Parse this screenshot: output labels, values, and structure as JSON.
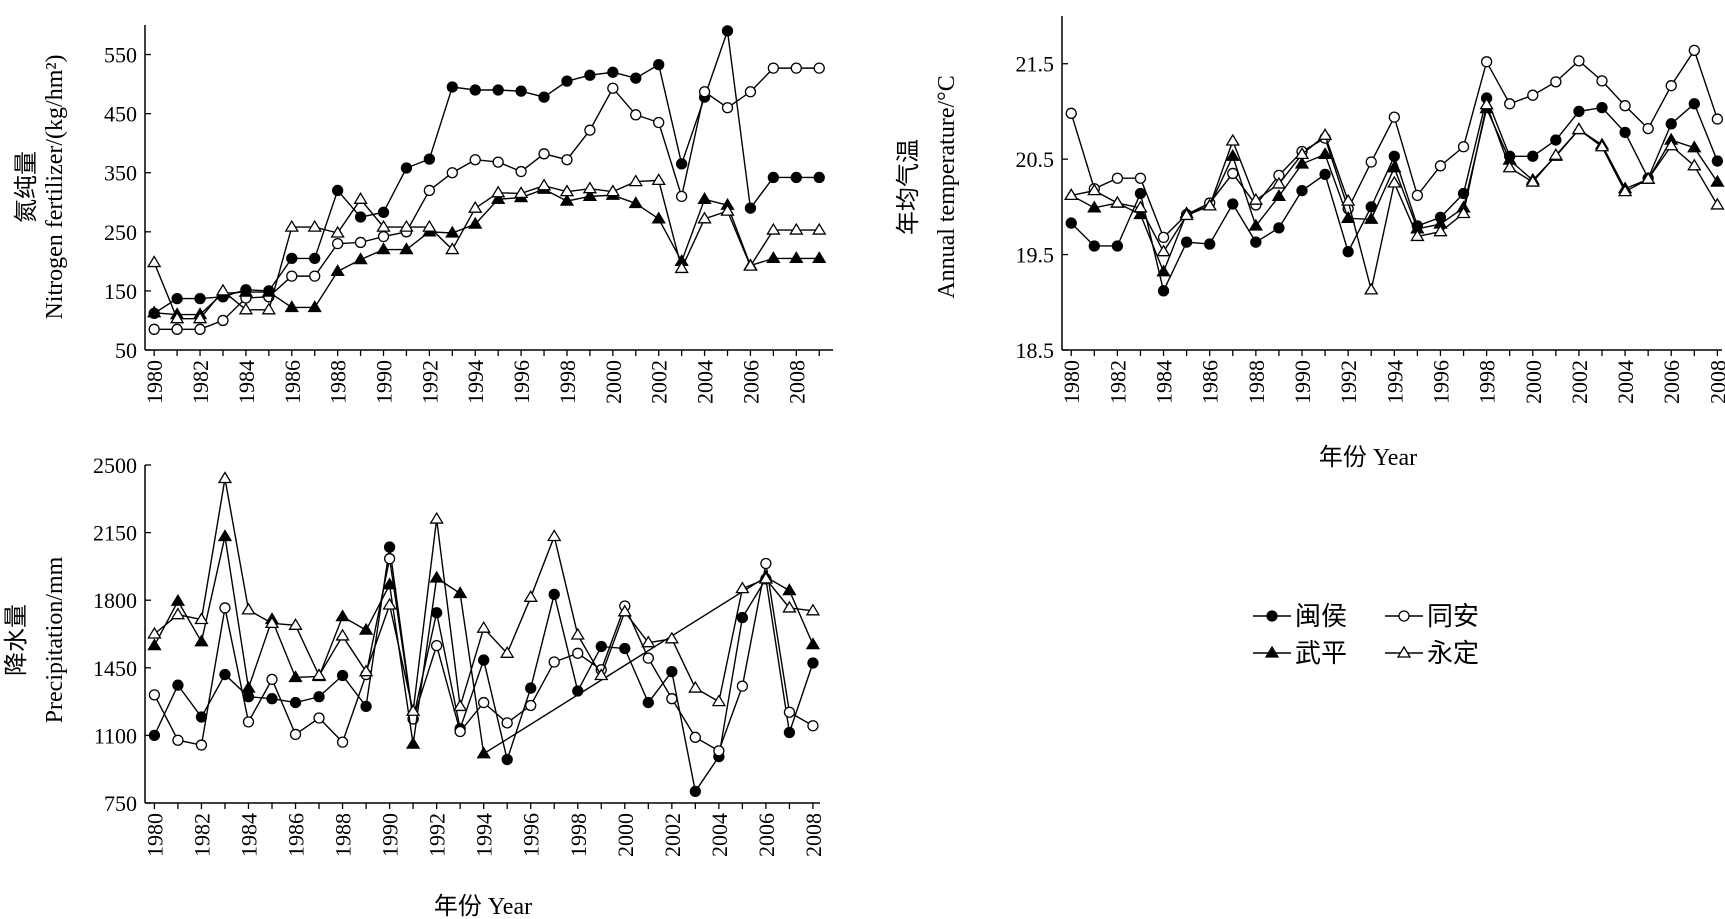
{
  "legend": {
    "entries": [
      {
        "series": "minhou",
        "label": "闽侯"
      },
      {
        "series": "tongan",
        "label": "同安"
      },
      {
        "series": "wuping",
        "label": "武平"
      },
      {
        "series": "yongding",
        "label": "永定"
      }
    ]
  },
  "chart_data": [
    {
      "id": "nitrogen",
      "type": "line",
      "ylabel_cn": "氮纯量",
      "ylabel_en": "Nitrogen fertilizer/(kg/hm²)",
      "xlabel": "",
      "ylim": [
        50,
        600
      ],
      "yticks": [
        50,
        150,
        250,
        350,
        450,
        550
      ],
      "xticks": [
        1980,
        1982,
        1984,
        1986,
        1988,
        1990,
        1992,
        1994,
        1996,
        1998,
        2000,
        2002,
        2004,
        2006,
        2008
      ],
      "xlim": [
        1979.6,
        2009.6
      ],
      "x": [
        1980,
        1981,
        1982,
        1983,
        1984,
        1985,
        1986,
        1987,
        1988,
        1989,
        1990,
        1991,
        1992,
        1993,
        1994,
        1995,
        1996,
        1997,
        1998,
        1999,
        2000,
        2001,
        2002,
        2003,
        2004,
        2005,
        2006,
        2007,
        2008,
        2009
      ],
      "series": [
        {
          "key": "minhou",
          "values": [
            112,
            137,
            137,
            140,
            152,
            150,
            205,
            205,
            320,
            275,
            283,
            358,
            373,
            495,
            490,
            490,
            488,
            478,
            505,
            515,
            520,
            510,
            533,
            365,
            478,
            590,
            290,
            342,
            342,
            342
          ]
        },
        {
          "key": "tongan",
          "values": [
            85,
            85,
            85,
            100,
            138,
            140,
            175,
            175,
            230,
            232,
            242,
            250,
            320,
            350,
            372,
            368,
            352,
            382,
            372,
            422,
            493,
            448,
            435,
            310,
            487,
            460,
            487,
            527,
            527,
            527
          ]
        },
        {
          "key": "wuping",
          "values": [
            113,
            110,
            110,
            146,
            148,
            148,
            122,
            122,
            183,
            203,
            220,
            220,
            250,
            248,
            263,
            305,
            308,
            322,
            302,
            310,
            312,
            298,
            272,
            200,
            305,
            295,
            193,
            205,
            205,
            205
          ]
        },
        {
          "key": "yongding",
          "values": [
            198,
            103,
            103,
            150,
            118,
            118,
            258,
            258,
            248,
            305,
            258,
            258,
            258,
            220,
            290,
            316,
            315,
            328,
            318,
            323,
            318,
            335,
            337,
            188,
            272,
            285,
            192,
            253,
            253,
            253
          ]
        }
      ]
    },
    {
      "id": "temperature",
      "type": "line",
      "ylabel_cn": "年均气温",
      "ylabel_en": "Annual temperature/°C",
      "xlabel": "年份 Year",
      "ylim": [
        18.5,
        22.0
      ],
      "yticks": [
        18.5,
        19.5,
        20.5,
        21.5
      ],
      "yticklabels": [
        "18.5",
        "19.5",
        "20.5",
        "21.5"
      ],
      "xticks": [
        1980,
        1982,
        1984,
        1986,
        1988,
        1990,
        1992,
        1994,
        1996,
        1998,
        2000,
        2002,
        2004,
        2006,
        2008
      ],
      "xlim": [
        1979.6,
        2008.2
      ],
      "x": [
        1980,
        1981,
        1982,
        1983,
        1984,
        1985,
        1986,
        1987,
        1988,
        1989,
        1990,
        1991,
        1992,
        1993,
        1994,
        1995,
        1996,
        1997,
        1998,
        1999,
        2000,
        2001,
        2002,
        2003,
        2004,
        2005,
        2006,
        2007,
        2008
      ],
      "series": [
        {
          "key": "minhou",
          "values": [
            19.83,
            19.59,
            19.59,
            20.14,
            19.12,
            19.63,
            19.61,
            20.03,
            19.63,
            19.78,
            20.17,
            20.34,
            19.53,
            20.0,
            20.53,
            19.8,
            19.89,
            20.14,
            21.14,
            20.53,
            20.53,
            20.7,
            21.0,
            21.04,
            20.78,
            20.3,
            20.87,
            21.08,
            20.48
          ]
        },
        {
          "key": "tongan",
          "values": [
            20.98,
            20.19,
            20.3,
            20.3,
            19.68,
            19.92,
            20.04,
            20.35,
            20.02,
            20.33,
            20.58,
            20.72,
            19.98,
            20.47,
            20.94,
            20.12,
            20.43,
            20.63,
            21.52,
            21.08,
            21.17,
            21.31,
            21.53,
            21.32,
            21.06,
            20.82,
            21.27,
            21.64,
            20.92
          ]
        },
        {
          "key": "wuping",
          "values": [
            20.12,
            19.99,
            20.04,
            19.92,
            19.32,
            19.93,
            20.01,
            20.53,
            19.8,
            20.11,
            20.45,
            20.55,
            19.88,
            19.87,
            20.41,
            19.77,
            19.82,
            19.99,
            21.03,
            20.49,
            20.28,
            20.53,
            20.81,
            20.65,
            20.19,
            20.29,
            20.7,
            20.62,
            20.26
          ]
        },
        {
          "key": "yongding",
          "values": [
            20.12,
            20.17,
            20.04,
            19.99,
            19.53,
            19.91,
            20.01,
            20.69,
            20.07,
            20.24,
            20.55,
            20.75,
            20.06,
            19.13,
            20.25,
            19.69,
            19.74,
            19.93,
            21.07,
            20.41,
            20.26,
            20.54,
            20.81,
            20.63,
            20.16,
            20.29,
            20.64,
            20.43,
            20.02
          ]
        }
      ]
    },
    {
      "id": "precipitation",
      "type": "line",
      "ylabel_cn": "降水量",
      "ylabel_en": "Precipitation/mm",
      "xlabel": "年份 Year",
      "ylim": [
        750,
        2500
      ],
      "yticks": [
        750,
        1100,
        1450,
        1800,
        2150,
        2500
      ],
      "xticks": [
        1980,
        1982,
        1984,
        1986,
        1988,
        1990,
        1992,
        1994,
        1996,
        1998,
        2000,
        2002,
        2004,
        2006,
        2008
      ],
      "xlim": [
        1979.6,
        2008.3
      ],
      "x": [
        1980,
        1981,
        1982,
        1983,
        1984,
        1985,
        1986,
        1987,
        1988,
        1989,
        1990,
        1991,
        1992,
        1993,
        1994,
        1995,
        1996,
        1997,
        1998,
        1999,
        2000,
        2001,
        2002,
        2003,
        2004,
        2005,
        2006,
        2007,
        2008
      ],
      "series": [
        {
          "key": "minhou",
          "values": [
            1100,
            1360,
            1195,
            1415,
            1300,
            1290,
            1270,
            1300,
            1410,
            1250,
            2075,
            1185,
            1735,
            1135,
            1490,
            975,
            1345,
            1830,
            1330,
            1560,
            1550,
            1270,
            1430,
            810,
            990,
            1710,
            1910,
            1115,
            1475
          ]
        },
        {
          "key": "tongan",
          "values": [
            1310,
            1075,
            1050,
            1760,
            1170,
            1390,
            1105,
            1190,
            1065,
            1415,
            2015,
            1185,
            1565,
            1120,
            1270,
            1165,
            1255,
            1480,
            1525,
            1440,
            1770,
            1500,
            1290,
            1090,
            1020,
            1355,
            1990,
            1220,
            1150
          ]
        },
        {
          "key": "wuping",
          "values": [
            1565,
            1795,
            1585,
            2130,
            1345,
            1700,
            1400,
            1405,
            1715,
            1645,
            1880,
            1055,
            1915,
            1835,
            1005,
            null,
            null,
            null,
            null,
            null,
            null,
            null,
            null,
            null,
            null,
            null,
            1920,
            1850,
            1570
          ]
        },
        {
          "key": "yongding",
          "values": [
            1625,
            1725,
            1700,
            2430,
            1750,
            1680,
            1670,
            1410,
            1615,
            1430,
            1775,
            1225,
            2220,
            1250,
            1655,
            1525,
            1815,
            2130,
            1620,
            1410,
            1740,
            1580,
            1600,
            1345,
            1275,
            1860,
            1910,
            1760,
            1745
          ]
        }
      ]
    }
  ]
}
